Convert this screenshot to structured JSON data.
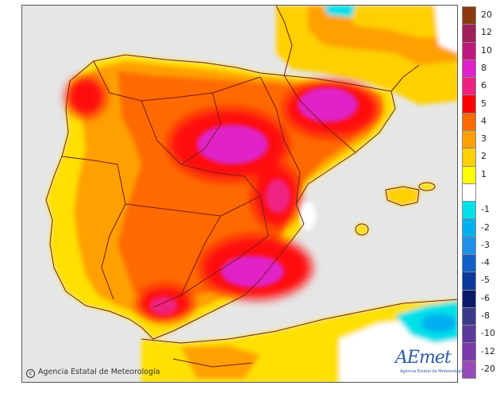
{
  "map": {
    "region": "Iberian Peninsula and Balearic Islands",
    "variable_shown_by_colour": "temperature anomaly"
  },
  "legend": {
    "entries": [
      {
        "label": "20",
        "color": "#8b3a0f"
      },
      {
        "label": "12",
        "color": "#a0205a"
      },
      {
        "label": "10",
        "color": "#c0187c"
      },
      {
        "label": "8",
        "color": "#e020c8"
      },
      {
        "label": "6",
        "color": "#f02080"
      },
      {
        "label": "5",
        "color": "#ff0000"
      },
      {
        "label": "4",
        "color": "#ff6a00"
      },
      {
        "label": "3",
        "color": "#ffa000"
      },
      {
        "label": "2",
        "color": "#ffd000"
      },
      {
        "label": "1",
        "color": "#ffff00"
      },
      {
        "label": "",
        "color": "#ffffff"
      },
      {
        "label": "-1",
        "color": "#00e0e8"
      },
      {
        "label": "-2",
        "color": "#00b0f0"
      },
      {
        "label": "-3",
        "color": "#1e90e8"
      },
      {
        "label": "-4",
        "color": "#1060c8"
      },
      {
        "label": "-5",
        "color": "#0a3a9c"
      },
      {
        "label": "-6",
        "color": "#0a1a6a"
      },
      {
        "label": "-8",
        "color": "#3a3a8a"
      },
      {
        "label": "-10",
        "color": "#5a3a9a"
      },
      {
        "label": "-12",
        "color": "#7a3aaa"
      },
      {
        "label": "-20",
        "color": "#9a4ab8"
      }
    ]
  },
  "credit": {
    "text": "Agencia Estatal de Meteorología"
  },
  "logo": {
    "wordmark": "AEmet",
    "subtitle": "Agencia Estatal de Meteorología"
  },
  "colors": {
    "sea_land_background": "#e6e6e6",
    "border_lines": "#7a1a1a"
  }
}
